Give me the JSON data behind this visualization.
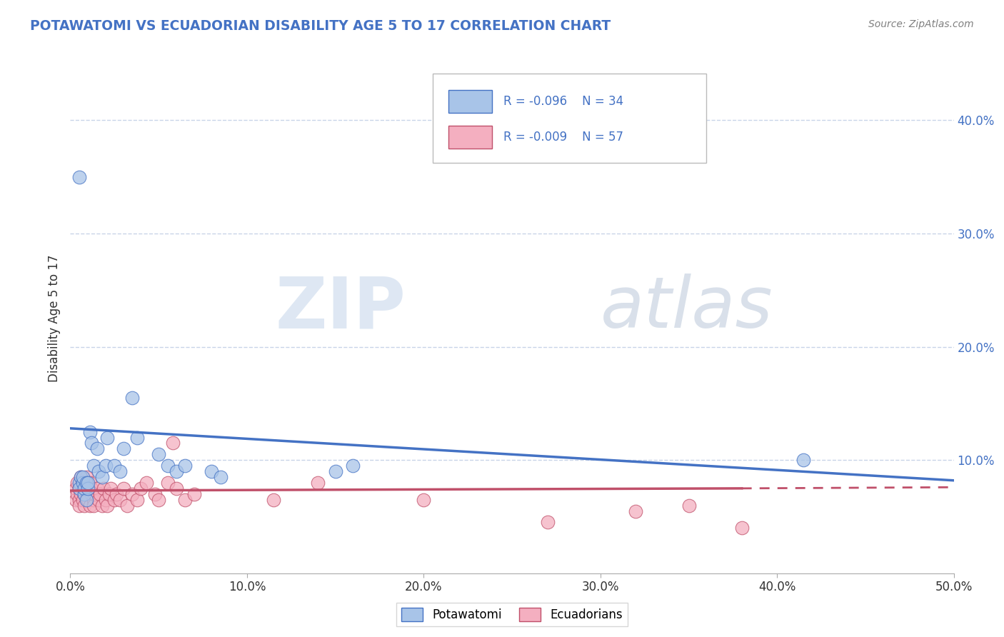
{
  "title": "POTAWATOMI VS ECUADORIAN DISABILITY AGE 5 TO 17 CORRELATION CHART",
  "source": "Source: ZipAtlas.com",
  "ylabel": "Disability Age 5 to 17",
  "legend_potawatomi": "Potawatomi",
  "legend_ecuadorians": "Ecuadorians",
  "legend_r_potawatomi": "-0.096",
  "legend_n_potawatomi": "34",
  "legend_r_ecuadorians": "-0.009",
  "legend_n_ecuadorians": "57",
  "color_potawatomi": "#a8c4e8",
  "color_ecuadorians": "#f4afc0",
  "color_trend_potawatomi": "#4472c4",
  "color_trend_ecuadorians": "#c0506a",
  "color_title": "#4472c4",
  "color_source": "#808080",
  "ylabel_right_ticks": [
    "40.0%",
    "30.0%",
    "20.0%",
    "10.0%"
  ],
  "ylabel_right_vals": [
    0.4,
    0.3,
    0.2,
    0.1
  ],
  "potawatomi_x": [
    0.005,
    0.005,
    0.006,
    0.007,
    0.007,
    0.008,
    0.008,
    0.009,
    0.009,
    0.01,
    0.01,
    0.011,
    0.012,
    0.013,
    0.015,
    0.016,
    0.018,
    0.02,
    0.021,
    0.025,
    0.028,
    0.03,
    0.035,
    0.038,
    0.05,
    0.055,
    0.06,
    0.065,
    0.08,
    0.085,
    0.15,
    0.16,
    0.415,
    0.005
  ],
  "potawatomi_y": [
    0.08,
    0.075,
    0.085,
    0.08,
    0.085,
    0.07,
    0.075,
    0.065,
    0.08,
    0.075,
    0.08,
    0.125,
    0.115,
    0.095,
    0.11,
    0.09,
    0.085,
    0.095,
    0.12,
    0.095,
    0.09,
    0.11,
    0.155,
    0.12,
    0.105,
    0.095,
    0.09,
    0.095,
    0.09,
    0.085,
    0.09,
    0.095,
    0.1,
    0.35
  ],
  "ecuadorian_x": [
    0.003,
    0.003,
    0.004,
    0.004,
    0.005,
    0.005,
    0.005,
    0.006,
    0.006,
    0.007,
    0.007,
    0.007,
    0.008,
    0.008,
    0.009,
    0.009,
    0.01,
    0.01,
    0.011,
    0.011,
    0.012,
    0.012,
    0.013,
    0.013,
    0.014,
    0.015,
    0.016,
    0.017,
    0.018,
    0.019,
    0.02,
    0.021,
    0.022,
    0.023,
    0.025,
    0.026,
    0.028,
    0.03,
    0.032,
    0.035,
    0.038,
    0.04,
    0.043,
    0.048,
    0.05,
    0.055,
    0.058,
    0.06,
    0.065,
    0.07,
    0.115,
    0.14,
    0.2,
    0.27,
    0.32,
    0.35,
    0.38
  ],
  "ecuadorian_y": [
    0.075,
    0.065,
    0.08,
    0.07,
    0.075,
    0.065,
    0.06,
    0.085,
    0.07,
    0.08,
    0.075,
    0.065,
    0.07,
    0.06,
    0.085,
    0.075,
    0.07,
    0.065,
    0.08,
    0.06,
    0.07,
    0.075,
    0.065,
    0.06,
    0.07,
    0.075,
    0.065,
    0.07,
    0.06,
    0.075,
    0.065,
    0.06,
    0.07,
    0.075,
    0.065,
    0.07,
    0.065,
    0.075,
    0.06,
    0.07,
    0.065,
    0.075,
    0.08,
    0.07,
    0.065,
    0.08,
    0.115,
    0.075,
    0.065,
    0.07,
    0.065,
    0.08,
    0.065,
    0.045,
    0.055,
    0.06,
    0.04
  ],
  "trend_pot_x0": 0.0,
  "trend_pot_x1": 0.5,
  "trend_pot_y0": 0.128,
  "trend_pot_y1": 0.082,
  "trend_ecu_x0": 0.0,
  "trend_ecu_solid_x": 0.38,
  "trend_ecu_x1": 0.5,
  "trend_ecu_y0": 0.073,
  "trend_ecu_y_solid": 0.075,
  "trend_ecu_y1": 0.076,
  "xlim": [
    0.0,
    0.5
  ],
  "ylim": [
    0.0,
    0.45
  ],
  "background_color": "#ffffff",
  "grid_color": "#c8d4e8",
  "watermark_zip": "ZIP",
  "watermark_atlas": "atlas",
  "watermark_color_zip": "#c8d8ec",
  "watermark_color_atlas": "#c0ccdc",
  "watermark_alpha": 0.6
}
